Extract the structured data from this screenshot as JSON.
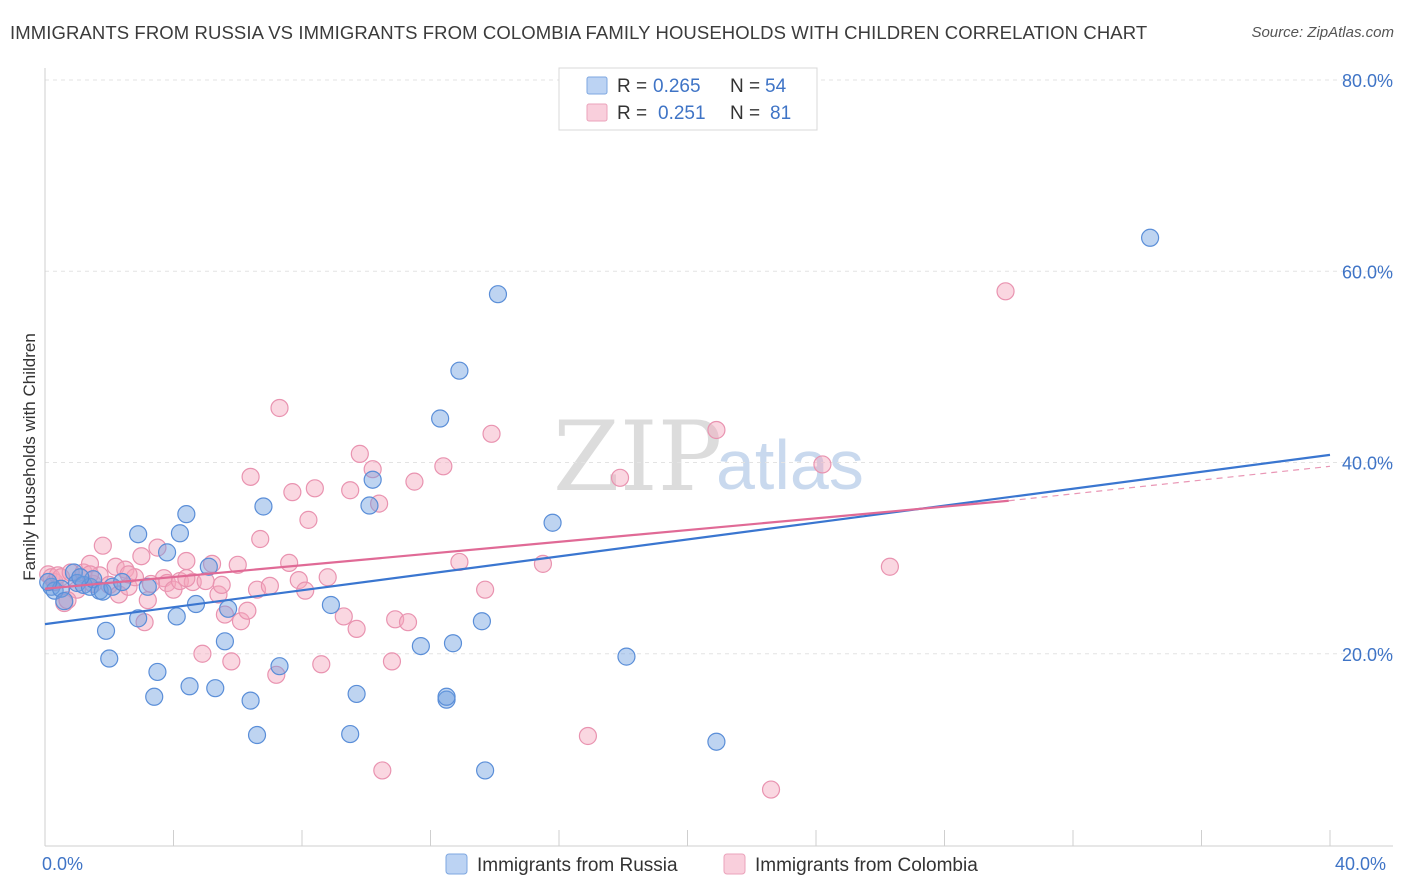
{
  "header": {
    "title": "IMMIGRANTS FROM RUSSIA VS IMMIGRANTS FROM COLOMBIA FAMILY HOUSEHOLDS WITH CHILDREN CORRELATION CHART",
    "source": "Source: ZipAtlas.com"
  },
  "watermark": {
    "zip": "ZIP",
    "atlas": "atlas"
  },
  "colors": {
    "russia": "#6f9fe0",
    "colombia": "#f4a6bd",
    "russia_line": "#3a76d0",
    "colombia_line": "#e06a96",
    "tick_blue": "#3f74c6"
  },
  "chart_data": {
    "type": "scatter",
    "title": "IMMIGRANTS FROM RUSSIA VS IMMIGRANTS FROM COLOMBIA FAMILY HOUSEHOLDS WITH CHILDREN CORRELATION CHART",
    "xlabel": "",
    "ylabel": "Family Households with Children",
    "xlim": [
      0,
      40
    ],
    "ylim": [
      0,
      80
    ],
    "x_tick_labels": [
      "0.0%",
      "40.0%"
    ],
    "y_ticks": [
      20,
      40,
      60,
      80
    ],
    "y_tick_labels": [
      "20.0%",
      "40.0%",
      "60.0%",
      "80.0%"
    ],
    "legend": {
      "position": "top-center",
      "entries": [
        {
          "r_label": "R =",
          "r_value": "0.265",
          "n_label": "N =",
          "n_value": "54"
        },
        {
          "r_label": "R =",
          "r_value": "0.251",
          "n_label": "N =",
          "n_value": "81"
        }
      ]
    },
    "bottom_legend": [
      "Immigrants from Russia",
      "Immigrants from Colombia"
    ],
    "series": [
      {
        "name": "Immigrants from Russia",
        "r": 0.265,
        "n": 54,
        "trend": {
          "x": [
            0,
            40
          ],
          "y": [
            23.1,
            40.8
          ]
        },
        "points": [
          [
            0.2,
            27.0
          ],
          [
            0.3,
            26.6
          ],
          [
            0.5,
            26.8
          ],
          [
            0.6,
            25.5
          ],
          [
            0.9,
            28.5
          ],
          [
            1.0,
            27.4
          ],
          [
            1.2,
            27.2
          ],
          [
            1.4,
            27.0
          ],
          [
            1.5,
            27.8
          ],
          [
            1.7,
            26.6
          ],
          [
            1.8,
            26.5
          ],
          [
            1.9,
            22.4
          ],
          [
            2.0,
            19.5
          ],
          [
            2.1,
            27.0
          ],
          [
            2.9,
            32.5
          ],
          [
            2.9,
            23.7
          ],
          [
            3.2,
            27.0
          ],
          [
            3.4,
            15.5
          ],
          [
            3.5,
            18.1
          ],
          [
            3.8,
            30.6
          ],
          [
            4.1,
            23.9
          ],
          [
            4.2,
            32.6
          ],
          [
            4.4,
            34.6
          ],
          [
            4.5,
            16.6
          ],
          [
            4.7,
            25.2
          ],
          [
            5.1,
            29.1
          ],
          [
            5.3,
            16.4
          ],
          [
            5.6,
            21.3
          ],
          [
            5.7,
            24.7
          ],
          [
            6.4,
            15.1
          ],
          [
            6.6,
            11.5
          ],
          [
            6.8,
            35.4
          ],
          [
            7.3,
            18.7
          ],
          [
            8.9,
            25.1
          ],
          [
            9.5,
            11.6
          ],
          [
            9.7,
            15.8
          ],
          [
            10.1,
            35.5
          ],
          [
            10.2,
            38.2
          ],
          [
            11.7,
            20.8
          ],
          [
            12.3,
            44.6
          ],
          [
            12.5,
            15.2
          ],
          [
            12.5,
            15.5
          ],
          [
            12.7,
            21.1
          ],
          [
            12.9,
            49.6
          ],
          [
            13.6,
            23.4
          ],
          [
            13.7,
            7.8
          ],
          [
            14.1,
            57.6
          ],
          [
            15.8,
            33.7
          ],
          [
            18.1,
            19.7
          ],
          [
            20.9,
            10.8
          ],
          [
            34.4,
            63.5
          ],
          [
            0.1,
            27.5
          ],
          [
            1.1,
            28.0
          ],
          [
            2.4,
            27.5
          ]
        ]
      },
      {
        "name": "Immigrants from Colombia",
        "r": 0.251,
        "n": 81,
        "trend": {
          "x": [
            0,
            30
          ],
          "y": [
            26.8,
            36.0
          ]
        },
        "trend_ext": {
          "x": [
            30,
            40
          ],
          "y": [
            36.0,
            39.6
          ]
        },
        "points": [
          [
            0.1,
            28.3
          ],
          [
            0.2,
            28.0
          ],
          [
            0.3,
            27.5
          ],
          [
            0.4,
            28.2
          ],
          [
            0.5,
            28.0
          ],
          [
            0.6,
            25.3
          ],
          [
            0.8,
            28.5
          ],
          [
            1.0,
            26.7
          ],
          [
            1.2,
            28.5
          ],
          [
            1.4,
            29.4
          ],
          [
            1.5,
            27.3
          ],
          [
            1.7,
            28.2
          ],
          [
            1.8,
            31.3
          ],
          [
            2.0,
            27.2
          ],
          [
            2.2,
            29.1
          ],
          [
            2.3,
            26.2
          ],
          [
            2.5,
            28.8
          ],
          [
            2.6,
            27.0
          ],
          [
            2.8,
            28.0
          ],
          [
            3.0,
            30.2
          ],
          [
            3.1,
            23.3
          ],
          [
            3.2,
            25.6
          ],
          [
            3.5,
            31.1
          ],
          [
            3.7,
            27.9
          ],
          [
            3.8,
            27.4
          ],
          [
            4.0,
            26.7
          ],
          [
            4.2,
            27.6
          ],
          [
            4.4,
            29.7
          ],
          [
            4.6,
            27.5
          ],
          [
            4.9,
            20.0
          ],
          [
            5.0,
            27.6
          ],
          [
            5.2,
            29.4
          ],
          [
            5.4,
            26.2
          ],
          [
            5.5,
            27.2
          ],
          [
            5.6,
            24.1
          ],
          [
            5.8,
            19.2
          ],
          [
            6.0,
            29.3
          ],
          [
            6.1,
            23.4
          ],
          [
            6.3,
            24.5
          ],
          [
            6.4,
            38.5
          ],
          [
            6.6,
            26.7
          ],
          [
            6.7,
            32.0
          ],
          [
            7.0,
            27.1
          ],
          [
            7.2,
            17.8
          ],
          [
            7.3,
            45.7
          ],
          [
            7.6,
            29.5
          ],
          [
            7.7,
            36.9
          ],
          [
            7.9,
            27.7
          ],
          [
            8.1,
            26.6
          ],
          [
            8.2,
            34.0
          ],
          [
            8.4,
            37.3
          ],
          [
            8.6,
            18.9
          ],
          [
            8.8,
            28.0
          ],
          [
            9.3,
            23.9
          ],
          [
            9.5,
            37.1
          ],
          [
            9.7,
            22.6
          ],
          [
            9.8,
            40.9
          ],
          [
            10.2,
            39.3
          ],
          [
            10.4,
            35.7
          ],
          [
            10.5,
            7.8
          ],
          [
            10.8,
            19.2
          ],
          [
            10.9,
            23.6
          ],
          [
            11.3,
            23.3
          ],
          [
            11.5,
            38.0
          ],
          [
            12.4,
            39.6
          ],
          [
            12.9,
            29.6
          ],
          [
            13.7,
            26.7
          ],
          [
            13.9,
            43.0
          ],
          [
            15.5,
            29.4
          ],
          [
            16.9,
            11.4
          ],
          [
            17.9,
            38.4
          ],
          [
            20.9,
            43.4
          ],
          [
            22.6,
            5.8
          ],
          [
            24.2,
            39.8
          ],
          [
            26.3,
            29.1
          ],
          [
            29.9,
            57.9
          ],
          [
            1.4,
            28.3
          ],
          [
            2.6,
            28.3
          ],
          [
            4.4,
            27.9
          ],
          [
            3.3,
            27.3
          ],
          [
            0.7,
            25.6
          ]
        ]
      }
    ]
  }
}
